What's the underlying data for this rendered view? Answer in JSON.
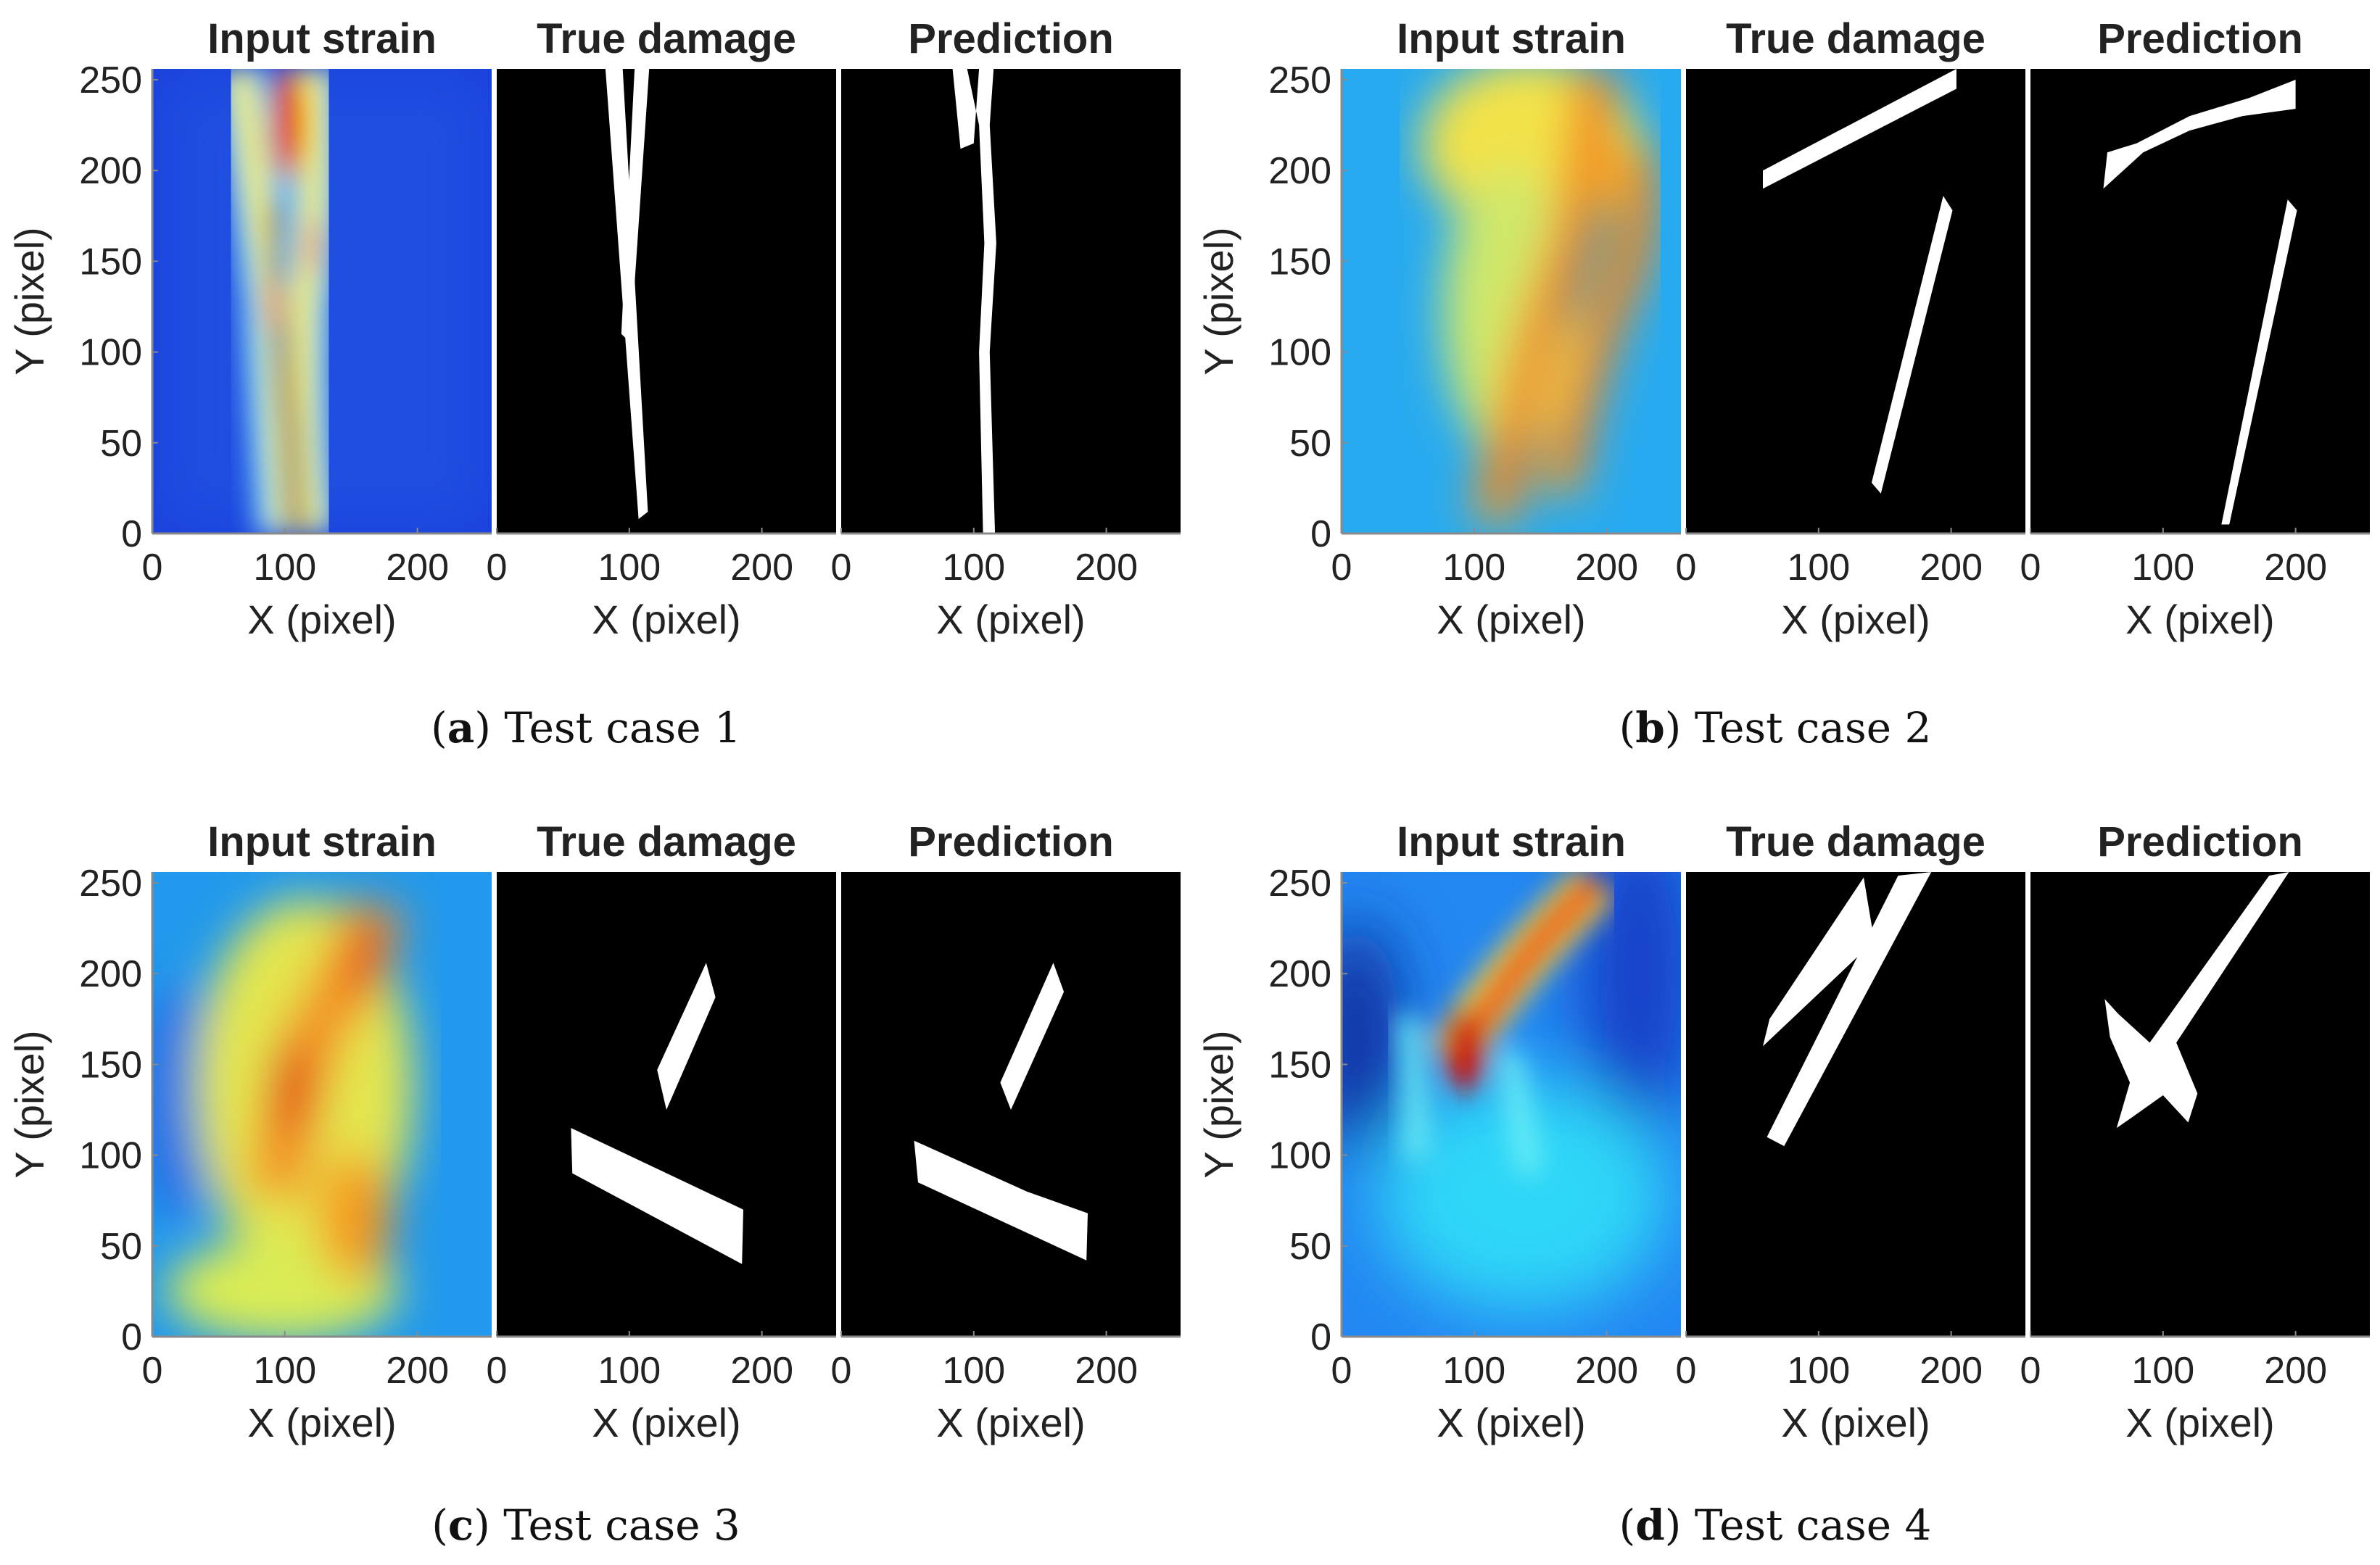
{
  "panel_titles": [
    "Input strain",
    "True damage",
    "Prediction"
  ],
  "xlabel": "X (pixel)",
  "ylabel": "Y (pixel)",
  "x_ticks": [
    "0",
    "100",
    "200"
  ],
  "y_ticks": [
    "0",
    "50",
    "100",
    "150",
    "200",
    "250"
  ],
  "axis_range": {
    "x": [
      0,
      256
    ],
    "y": [
      0,
      256
    ]
  },
  "colors": {
    "background": "#ffffff",
    "mask_bg": "#000000",
    "mask_fg": "#ffffff",
    "text": "#222222",
    "colormap": "jet"
  },
  "figure": {
    "subfigures": [
      {
        "letter": "a",
        "caption": "Test case 1"
      },
      {
        "letter": "b",
        "caption": "Test case 2"
      },
      {
        "letter": "c",
        "caption": "Test case 3"
      },
      {
        "letter": "d",
        "caption": "Test case 4"
      }
    ]
  },
  "chart_data": [
    {
      "type": "heatmap",
      "case": "Test case 1",
      "true_damage": [
        {
          "shape": "polygon",
          "points": [
            [
              82,
              256
            ],
            [
              95,
              256
            ],
            [
              114,
              12
            ],
            [
              107,
              8
            ]
          ]
        },
        {
          "shape": "polygon",
          "points": [
            [
              104,
              256
            ],
            [
              115,
              256
            ],
            [
              101,
              105
            ],
            [
              94,
              110
            ]
          ]
        }
      ],
      "prediction": [
        {
          "shape": "polygon",
          "points": [
            [
              84,
              256
            ],
            [
              95,
              256
            ],
            [
              104,
              225
            ],
            [
              108,
              160
            ],
            [
              104,
              100
            ],
            [
              107,
              0
            ],
            [
              116,
              0
            ],
            [
              112,
              100
            ],
            [
              117,
              160
            ],
            [
              112,
              225
            ],
            [
              115,
              256
            ],
            [
              104,
              256
            ],
            [
              100,
              215
            ],
            [
              90,
              212
            ]
          ]
        }
      ]
    },
    {
      "type": "heatmap",
      "case": "Test case 2",
      "true_damage": [
        {
          "shape": "polygon",
          "points": [
            [
              58,
              200
            ],
            [
              58,
              190
            ],
            [
              204,
              245
            ],
            [
              204,
              256
            ]
          ]
        },
        {
          "shape": "polygon",
          "points": [
            [
              140,
              28
            ],
            [
              147,
              22
            ],
            [
              201,
              178
            ],
            [
              194,
              186
            ]
          ]
        }
      ],
      "prediction": [
        {
          "shape": "polygon",
          "points": [
            [
              55,
              190
            ],
            [
              58,
              210
            ],
            [
              80,
              215
            ],
            [
              120,
              230
            ],
            [
              165,
              240
            ],
            [
              200,
              250
            ],
            [
              200,
              234
            ],
            [
              160,
              230
            ],
            [
              120,
              222
            ],
            [
              85,
              210
            ]
          ]
        },
        {
          "shape": "polygon",
          "points": [
            [
              144,
              5
            ],
            [
              150,
              5
            ],
            [
              201,
              178
            ],
            [
              194,
              184
            ]
          ]
        }
      ]
    },
    {
      "type": "heatmap",
      "case": "Test case 3",
      "true_damage": [
        {
          "shape": "polygon",
          "points": [
            [
              121,
              147
            ],
            [
              128,
              125
            ],
            [
              165,
              187
            ],
            [
              158,
              206
            ]
          ]
        },
        {
          "shape": "polygon",
          "points": [
            [
              56,
              115
            ],
            [
              57,
              90
            ],
            [
              185,
              40
            ],
            [
              186,
              70
            ]
          ]
        }
      ],
      "prediction": [
        {
          "shape": "polygon",
          "points": [
            [
              120,
              140
            ],
            [
              128,
              125
            ],
            [
              168,
              190
            ],
            [
              160,
              206
            ]
          ]
        },
        {
          "shape": "polygon",
          "points": [
            [
              55,
              108
            ],
            [
              58,
              85
            ],
            [
              185,
              42
            ],
            [
              186,
              68
            ],
            [
              140,
              80
            ]
          ]
        }
      ],
      "true_damage_note": "two bands"
    },
    {
      "type": "heatmap",
      "case": "Test case 4",
      "true_damage": [
        {
          "shape": "polygon",
          "points": [
            [
              63,
              175
            ],
            [
              58,
              160
            ],
            [
              142,
              218
            ],
            [
              134,
              253
            ]
          ]
        },
        {
          "shape": "polygon",
          "points": [
            [
              61,
              110
            ],
            [
              160,
              254
            ],
            [
              185,
              256
            ],
            [
              74,
              105
            ]
          ]
        }
      ],
      "prediction": [
        {
          "shape": "polygon",
          "points": [
            [
              56,
              186
            ],
            [
              66,
              178
            ],
            [
              90,
              162
            ],
            [
              180,
              254
            ],
            [
              195,
              256
            ],
            [
              110,
              162
            ],
            [
              126,
              134
            ],
            [
              119,
              118
            ],
            [
              100,
              133
            ],
            [
              75,
              120
            ],
            [
              65,
              115
            ],
            [
              75,
              140
            ],
            [
              60,
              165
            ]
          ]
        }
      ]
    }
  ]
}
